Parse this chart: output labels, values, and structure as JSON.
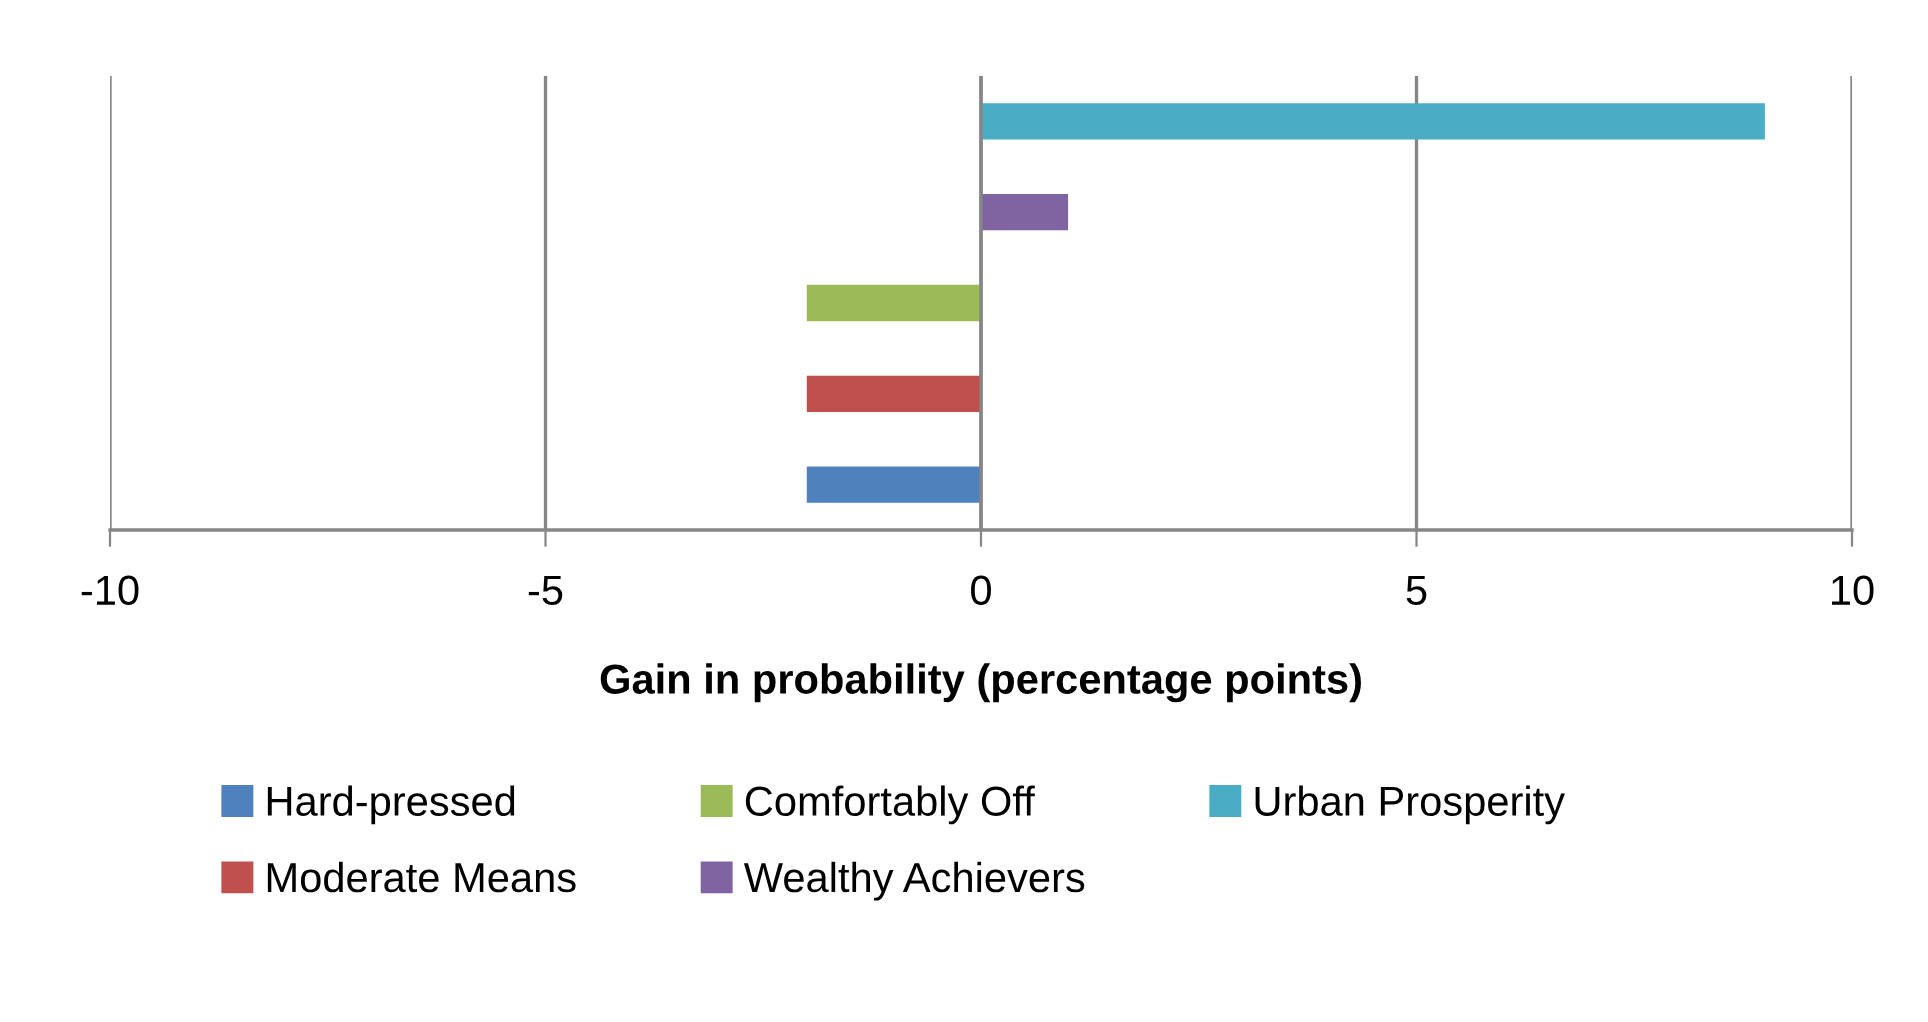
{
  "chart_data": {
    "type": "bar",
    "orientation": "horizontal",
    "xlabel": "Gain in probability (percentage points)",
    "categories": [
      null
    ],
    "series": [
      {
        "name": "Hard-pressed",
        "color": "#4f81bd",
        "values": [
          -2
        ]
      },
      {
        "name": "Moderate Means",
        "color": "#c0504d",
        "values": [
          -2
        ]
      },
      {
        "name": "Comfortably Off",
        "color": "#9bbb59",
        "values": [
          -2
        ]
      },
      {
        "name": "Wealthy Achievers",
        "color": "#8064a2",
        "values": [
          1
        ]
      },
      {
        "name": "Urban Prosperity",
        "color": "#4bacc6",
        "values": [
          9
        ]
      }
    ],
    "xlim": [
      -10,
      10
    ],
    "xticks": [
      -10,
      -5,
      0,
      5,
      10
    ],
    "grid": "x",
    "legend": "bottom",
    "tick_labels": "x"
  }
}
